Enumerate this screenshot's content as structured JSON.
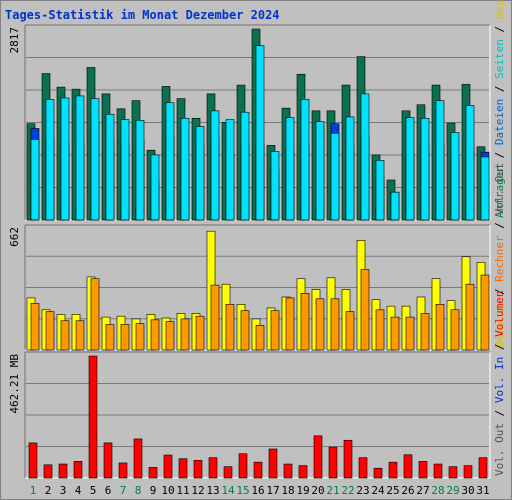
{
  "title": "Tages-Statistik im Monat Dezember 2024",
  "colors": {
    "background": "#c0c0c0",
    "grid": "#7a7a7a",
    "anfragen": "#0a7050",
    "dateien": "#00e0ff",
    "seiten": "#0040e0",
    "besuche": "#ffff00",
    "rechner": "#ff9900",
    "volumen": "#ff0000",
    "weekend_label": "#00803f",
    "weekday_label": "#000000"
  },
  "right_labels_top": [
    {
      "text": "Anfragen",
      "color": "#00803f"
    },
    {
      "text": " / ",
      "color": "#000000"
    },
    {
      "text": "Dateien",
      "color": "#0066cc"
    },
    {
      "text": " / ",
      "color": "#000000"
    },
    {
      "text": "Seiten",
      "color": "#00c0c0"
    },
    {
      "text": " / ",
      "color": "#000000"
    },
    {
      "text": "Besuche",
      "color": "#e0c000"
    }
  ],
  "right_labels_mid": [
    {
      "text": "Besuche",
      "color": "#e0c000"
    },
    {
      "text": " / ",
      "color": "#000000"
    },
    {
      "text": "Rechner",
      "color": "#ff6600"
    },
    {
      "text": " / ",
      "color": "#000000"
    },
    {
      "text": "Vol. Out",
      "color": "#555555"
    }
  ],
  "right_labels_bottom": [
    {
      "text": "Vol. Out",
      "color": "#555555"
    },
    {
      "text": " / ",
      "color": "#000000"
    },
    {
      "text": "Vol. In",
      "color": "#0033cc"
    },
    {
      "text": " / ",
      "color": "#000000"
    },
    {
      "text": "Volumen",
      "color": "#ff0000"
    }
  ],
  "chart_data": [
    {
      "type": "bar",
      "name": "Anfragen/Dateien/Seiten",
      "ymax_label": "2817",
      "ylim": [
        0,
        2817
      ],
      "categories": [
        "1",
        "2",
        "3",
        "4",
        "5",
        "6",
        "7",
        "8",
        "9",
        "10",
        "11",
        "12",
        "13",
        "14",
        "15",
        "16",
        "17",
        "18",
        "19",
        "20",
        "21",
        "22",
        "23",
        "24",
        "25",
        "26",
        "27",
        "28",
        "29",
        "30",
        "31"
      ],
      "weekend_days": [
        "1",
        "7",
        "8",
        "14",
        "15",
        "21",
        "22",
        "28",
        "29"
      ],
      "series": [
        {
          "name": "Anfragen",
          "values": [
            1420,
            2160,
            1960,
            1930,
            2250,
            1860,
            1640,
            1760,
            1030,
            1970,
            1790,
            1500,
            1860,
            1440,
            1990,
            2817,
            1100,
            1650,
            2150,
            1610,
            1610,
            1990,
            2410,
            960,
            590,
            1610,
            1700,
            1990,
            1430,
            2000,
            1080
          ]
        },
        {
          "name": "Dateien",
          "values": [
            1190,
            1780,
            1800,
            1830,
            1790,
            1560,
            1480,
            1470,
            960,
            1730,
            1500,
            1380,
            1610,
            1480,
            1590,
            2570,
            1010,
            1510,
            1780,
            1450,
            1280,
            1520,
            1860,
            880,
            410,
            1510,
            1500,
            1760,
            1290,
            1690,
            930
          ]
        },
        {
          "name": "Seiten",
          "values": [
            1350,
            1210,
            1150,
            1140,
            1440,
            1150,
            1120,
            1180,
            570,
            1230,
            900,
            1100,
            1210,
            960,
            1140,
            1120,
            740,
            1020,
            1140,
            1390,
            1420,
            1090,
            1230,
            640,
            410,
            980,
            1100,
            1120,
            920,
            1070,
            1000
          ]
        }
      ]
    },
    {
      "type": "bar",
      "name": "Besuche/Rechner",
      "ymax_label": "662",
      "ylim": [
        0,
        662
      ],
      "categories": [
        "1",
        "2",
        "3",
        "4",
        "5",
        "6",
        "7",
        "8",
        "9",
        "10",
        "11",
        "12",
        "13",
        "14",
        "15",
        "16",
        "17",
        "18",
        "19",
        "20",
        "21",
        "22",
        "23",
        "24",
        "25",
        "26",
        "27",
        "28",
        "29",
        "30",
        "31"
      ],
      "series": [
        {
          "name": "Besuche",
          "values": [
            285,
            220,
            195,
            195,
            400,
            180,
            185,
            170,
            195,
            175,
            200,
            200,
            650,
            360,
            250,
            170,
            230,
            290,
            390,
            330,
            395,
            330,
            600,
            275,
            240,
            240,
            290,
            390,
            270,
            510,
            480
          ]
        },
        {
          "name": "Rechner",
          "values": [
            255,
            210,
            160,
            160,
            390,
            140,
            140,
            145,
            165,
            155,
            170,
            185,
            355,
            250,
            215,
            135,
            215,
            285,
            310,
            280,
            280,
            210,
            440,
            220,
            180,
            180,
            200,
            250,
            220,
            360,
            410
          ]
        }
      ]
    },
    {
      "type": "bar",
      "name": "Volumen",
      "ymax_label": "462.21 MB",
      "ylim": [
        0,
        462.21
      ],
      "categories": [
        "1",
        "2",
        "3",
        "4",
        "5",
        "6",
        "7",
        "8",
        "9",
        "10",
        "11",
        "12",
        "13",
        "14",
        "15",
        "16",
        "17",
        "18",
        "19",
        "20",
        "21",
        "22",
        "23",
        "24",
        "25",
        "26",
        "27",
        "28",
        "29",
        "30",
        "31"
      ],
      "series": [
        {
          "name": "Volumen",
          "values": [
            133,
            50,
            53,
            63,
            462.21,
            133,
            57,
            148,
            40,
            87,
            73,
            67,
            77,
            43,
            92,
            60,
            110,
            53,
            47,
            160,
            117,
            143,
            77,
            37,
            60,
            88,
            63,
            53,
            43,
            47,
            77
          ]
        }
      ]
    }
  ]
}
